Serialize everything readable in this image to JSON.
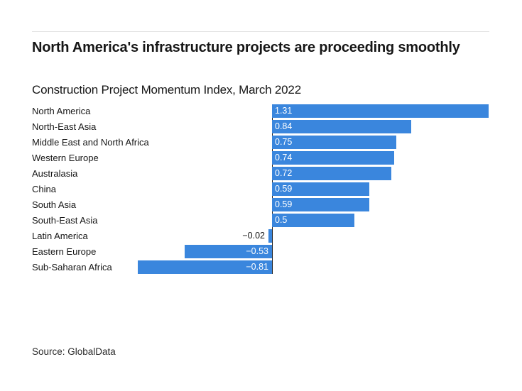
{
  "header": {
    "title": "North America's infrastructure projects are proceeding smoothly",
    "subtitle": "Construction Project Momentum Index, March 2022"
  },
  "footer": {
    "source": "Source: GlobalData"
  },
  "colors": {
    "background": "#ffffff",
    "bar": "#3a86dd",
    "axis_line": "#1a1a1a",
    "text": "#161616",
    "value_label_inside": "#ffffff",
    "value_label_outside": "#161616",
    "rule": "#e3e3e3"
  },
  "chart_data": {
    "type": "bar",
    "orientation": "horizontal",
    "title": "North America's infrastructure projects are proceeding smoothly",
    "subtitle": "Construction Project Momentum Index, March 2022",
    "source": "Source: GlobalData",
    "categories": [
      "North America",
      "North-East Asia",
      "Middle East and North Africa",
      "Western Europe",
      "Australasia",
      "China",
      "South Asia",
      "South-East Asia",
      "Latin America",
      "Eastern Europe",
      "Sub-Saharan Africa"
    ],
    "values": [
      1.31,
      0.84,
      0.75,
      0.74,
      0.72,
      0.59,
      0.59,
      0.5,
      -0.02,
      -0.53,
      -0.81
    ],
    "value_labels": [
      "1.31",
      "0.84",
      "0.75",
      "0.74",
      "0.72",
      "0.59",
      "0.59",
      "0.5",
      "−0.02",
      "−0.53",
      "−0.81"
    ],
    "value_axis_visible": false,
    "grid": false,
    "legend": false,
    "value_labels_position": "inside bar ends, outside when bar too small",
    "zero_baseline_line": true,
    "xlim": [
      -0.81,
      1.31
    ]
  }
}
